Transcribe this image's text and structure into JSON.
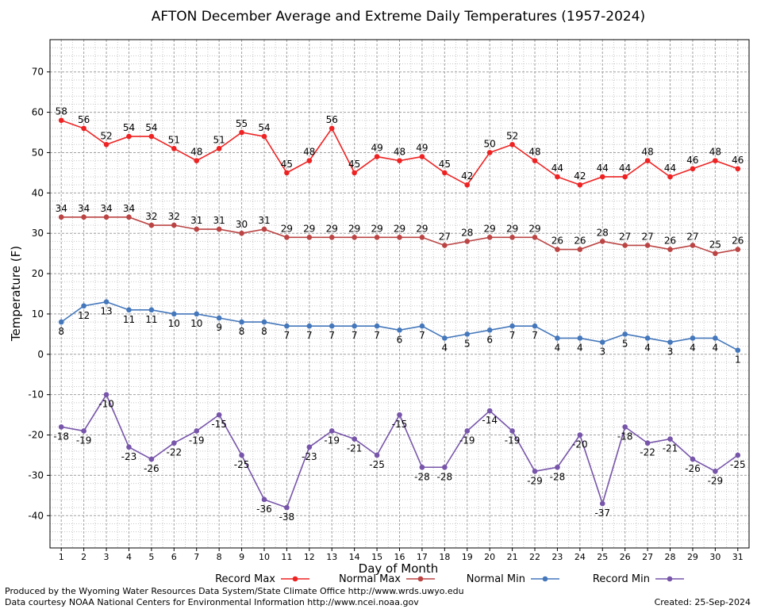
{
  "chart_data": {
    "type": "line",
    "title": "AFTON December Average and Extreme Daily Temperatures (1957-2024)",
    "xlabel": "Day of Month",
    "ylabel": "Temperature (F)",
    "x": [
      1,
      2,
      3,
      4,
      5,
      6,
      7,
      8,
      9,
      10,
      11,
      12,
      13,
      14,
      15,
      16,
      17,
      18,
      19,
      20,
      21,
      22,
      23,
      24,
      25,
      26,
      27,
      28,
      29,
      30,
      31
    ],
    "ylim": [
      -48,
      78
    ],
    "yticks": [
      -40,
      -30,
      -20,
      -10,
      0,
      10,
      20,
      30,
      40,
      50,
      60,
      70
    ],
    "grid": true,
    "legend_position": "bottom",
    "series": [
      {
        "name": "Record Max",
        "color": "#ee2222",
        "label_position": "above",
        "values": [
          58,
          56,
          52,
          54,
          54,
          51,
          48,
          51,
          55,
          54,
          45,
          48,
          56,
          45,
          49,
          48,
          49,
          45,
          42,
          50,
          52,
          48,
          44,
          42,
          44,
          44,
          48,
          44,
          46,
          48,
          46
        ]
      },
      {
        "name": "Normal Max",
        "color": "#bb4444",
        "label_position": "above",
        "values": [
          34,
          34,
          34,
          34,
          32,
          32,
          31,
          31,
          30,
          31,
          29,
          29,
          29,
          29,
          29,
          29,
          29,
          27,
          28,
          29,
          29,
          29,
          26,
          26,
          28,
          27,
          27,
          26,
          27,
          25,
          26
        ]
      },
      {
        "name": "Normal Min",
        "color": "#4477bb",
        "label_position": "below",
        "values": [
          8,
          12,
          13,
          11,
          11,
          10,
          10,
          9,
          8,
          8,
          7,
          7,
          7,
          7,
          7,
          6,
          7,
          4,
          5,
          6,
          7,
          7,
          4,
          4,
          3,
          5,
          4,
          3,
          4,
          4,
          1
        ]
      },
      {
        "name": "Record Min",
        "color": "#7755aa",
        "label_position": "below",
        "values": [
          -18,
          -19,
          -10,
          -23,
          -26,
          -22,
          -19,
          -15,
          -25,
          -36,
          -38,
          -23,
          -19,
          -21,
          -25,
          -15,
          -28,
          -28,
          -19,
          -14,
          -19,
          -29,
          -28,
          -20,
          -37,
          -18,
          -22,
          -21,
          -26,
          -29,
          -25
        ]
      }
    ]
  },
  "footer": {
    "line1": "Produced by the Wyoming Water Resources Data System/State Climate Office http://www.wrds.uwyo.edu",
    "line2": "Data courtesy NOAA National Centers for Environmental Information http://www.ncei.noaa.gov",
    "created": "Created:  25-Sep-2024"
  }
}
